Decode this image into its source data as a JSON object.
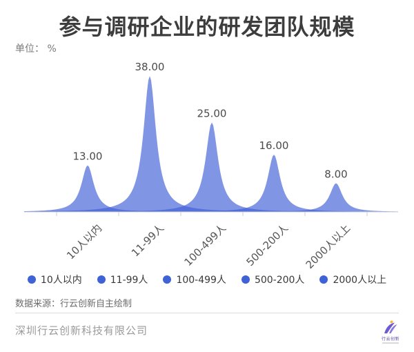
{
  "header": {
    "title": "参与调研企业的研发团队规模",
    "unit_label": "单位： %"
  },
  "chart_data": {
    "type": "area",
    "title": "参与调研企业的研发团队规模",
    "ylabel": "单位：%",
    "xlabel": "",
    "categories": [
      "10人以内",
      "11-99人",
      "100-499人",
      "500-200人",
      "2000人以上"
    ],
    "values": [
      13,
      38,
      25,
      16,
      8
    ],
    "value_labels": [
      "13.00",
      "38.00",
      "25.00",
      "16.00",
      "8.00"
    ],
    "ylim": [
      0,
      40
    ],
    "grid": false,
    "legend_position": "bottom",
    "series_color": "#3f5ed7",
    "series_opacity": 0.66,
    "axis_color": "#c9cdd6",
    "value_label_color": "#4a4a4a"
  },
  "legend": {
    "dot_color": "#3f62d6",
    "items": [
      "10人以内",
      "11-99人",
      "100-499人",
      "500-200人",
      "2000人以上"
    ]
  },
  "source_note": "数据来源：行云创新自主绘制",
  "footer": {
    "company": "深圳行云创新科技有限公司",
    "logo": {
      "name": "行云创新",
      "accent_purple": "#6c5bd2",
      "accent_purple_light": "#8a7ae0",
      "accent_yellow": "#f5b93f"
    }
  }
}
